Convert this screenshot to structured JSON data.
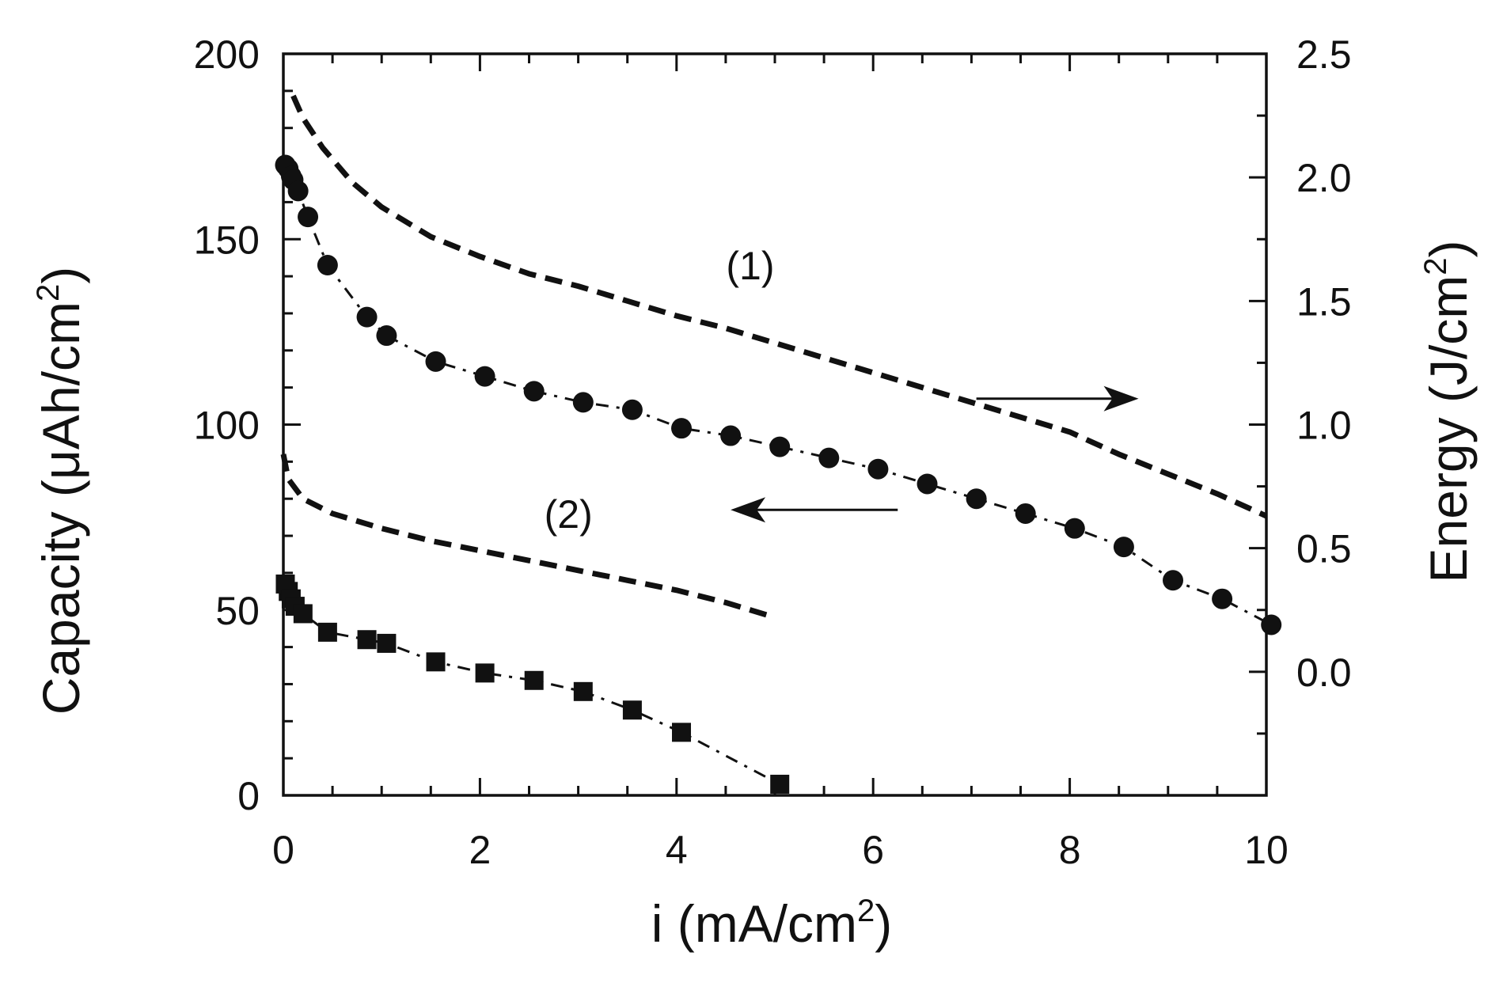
{
  "chart_data": {
    "type": "line",
    "x": {
      "label": "i (mA/cm",
      "label_sup": "2",
      "label_end": ")",
      "range": [
        0,
        10
      ],
      "ticks": [
        0,
        2,
        4,
        6,
        8,
        10
      ],
      "tick_labels": [
        "0",
        "2",
        "4",
        "6",
        "8",
        "10"
      ]
    },
    "y_left": {
      "label": "Capacity (μAh/cm",
      "label_sup": "2",
      "label_end": ")",
      "range": [
        0,
        200
      ],
      "ticks": [
        0,
        50,
        100,
        150,
        200
      ],
      "tick_labels": [
        "0",
        "50",
        "100",
        "150",
        "200"
      ]
    },
    "y_right": {
      "label": "Energy (J/cm",
      "label_sup": "2",
      "label_end": ")",
      "range": [
        -0.5,
        2.5
      ],
      "ticks": [
        0.0,
        0.5,
        1.0,
        1.5,
        2.0,
        2.5
      ],
      "tick_labels": [
        "0.0",
        "0.5",
        "1.0",
        "1.5",
        "2.0",
        "2.5"
      ]
    },
    "series": [
      {
        "axis": "left",
        "marker": "circle",
        "line": "dash-dot",
        "points": [
          [
            0.02,
            170
          ],
          [
            0.05,
            169
          ],
          [
            0.08,
            167
          ],
          [
            0.1,
            166
          ],
          [
            0.15,
            163
          ],
          [
            0.25,
            156
          ],
          [
            0.45,
            143
          ],
          [
            0.85,
            129
          ],
          [
            1.05,
            124
          ],
          [
            1.55,
            117
          ],
          [
            2.05,
            113
          ],
          [
            2.55,
            109
          ],
          [
            3.05,
            106
          ],
          [
            3.55,
            104
          ],
          [
            4.05,
            99
          ],
          [
            4.55,
            97
          ],
          [
            5.05,
            94
          ],
          [
            5.55,
            91
          ],
          [
            6.05,
            88
          ],
          [
            6.55,
            84
          ],
          [
            7.05,
            80
          ],
          [
            7.55,
            76
          ],
          [
            8.05,
            72
          ],
          [
            8.55,
            67
          ],
          [
            9.05,
            58
          ],
          [
            9.55,
            53
          ],
          [
            10.05,
            46
          ]
        ]
      },
      {
        "axis": "right",
        "marker": "none",
        "line": "dashed",
        "points": [
          [
            0.1,
            2.33
          ],
          [
            0.2,
            2.24
          ],
          [
            0.4,
            2.12
          ],
          [
            0.7,
            1.98
          ],
          [
            1.0,
            1.88
          ],
          [
            1.5,
            1.76
          ],
          [
            2.0,
            1.68
          ],
          [
            2.5,
            1.61
          ],
          [
            3.0,
            1.56
          ],
          [
            3.5,
            1.5
          ],
          [
            4.0,
            1.44
          ],
          [
            4.5,
            1.39
          ],
          [
            5.0,
            1.33
          ],
          [
            5.5,
            1.27
          ],
          [
            6.0,
            1.21
          ],
          [
            6.5,
            1.15
          ],
          [
            7.0,
            1.09
          ],
          [
            7.5,
            1.03
          ],
          [
            8.0,
            0.97
          ],
          [
            8.5,
            0.88
          ],
          [
            9.0,
            0.8
          ],
          [
            9.5,
            0.72
          ],
          [
            10.0,
            0.63
          ]
        ]
      },
      {
        "axis": "left",
        "marker": "square",
        "line": "dash-dot",
        "points": [
          [
            0.02,
            57
          ],
          [
            0.05,
            55
          ],
          [
            0.08,
            53
          ],
          [
            0.12,
            51
          ],
          [
            0.2,
            49
          ],
          [
            0.45,
            44
          ],
          [
            0.85,
            42
          ],
          [
            1.05,
            41
          ],
          [
            1.55,
            36
          ],
          [
            2.05,
            33
          ],
          [
            2.55,
            31
          ],
          [
            3.05,
            28
          ],
          [
            3.55,
            23
          ],
          [
            4.05,
            17
          ],
          [
            5.05,
            3
          ]
        ]
      },
      {
        "axis": "right",
        "marker": "none",
        "line": "dashed",
        "points": [
          [
            0.0,
            0.88
          ],
          [
            0.05,
            0.78
          ],
          [
            0.2,
            0.7
          ],
          [
            0.5,
            0.64
          ],
          [
            1.0,
            0.58
          ],
          [
            1.5,
            0.53
          ],
          [
            2.0,
            0.49
          ],
          [
            2.5,
            0.45
          ],
          [
            3.0,
            0.41
          ],
          [
            3.5,
            0.37
          ],
          [
            4.0,
            0.33
          ],
          [
            4.5,
            0.28
          ],
          [
            5.0,
            0.22
          ]
        ]
      }
    ],
    "annotations": [
      {
        "text": "(1)",
        "x": 4.75,
        "y_left": 143
      },
      {
        "text": "(2)",
        "x": 2.9,
        "y_left": 76
      }
    ],
    "arrows": [
      {
        "direction": "right",
        "x_from": 7.05,
        "x_to": 8.7,
        "y_left": 107
      },
      {
        "direction": "left",
        "x_from": 6.25,
        "x_to": 4.55,
        "y_left": 77
      }
    ],
    "grid": false,
    "legend": "none"
  }
}
